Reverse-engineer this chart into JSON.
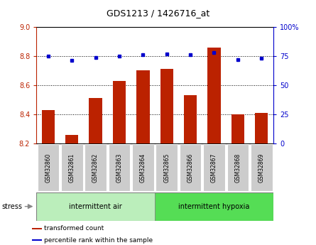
{
  "title": "GDS1213 / 1426716_at",
  "samples": [
    "GSM32860",
    "GSM32861",
    "GSM32862",
    "GSM32863",
    "GSM32864",
    "GSM32865",
    "GSM32866",
    "GSM32867",
    "GSM32868",
    "GSM32869"
  ],
  "red_values": [
    8.43,
    8.26,
    8.51,
    8.63,
    8.7,
    8.71,
    8.53,
    8.86,
    8.4,
    8.41
  ],
  "blue_values": [
    75,
    71,
    74,
    75,
    76,
    77,
    76,
    78,
    72,
    73
  ],
  "ylim_left": [
    8.2,
    9.0
  ],
  "ylim_right": [
    0,
    100
  ],
  "yticks_left": [
    8.2,
    8.4,
    8.6,
    8.8,
    9.0
  ],
  "yticks_right": [
    0,
    25,
    50,
    75,
    100
  ],
  "group1_label": "intermittent air",
  "group2_label": "intermittent hypoxia",
  "group1_count": 5,
  "group2_count": 5,
  "stress_label": "stress",
  "legend_red": "transformed count",
  "legend_blue": "percentile rank within the sample",
  "bar_color": "#bb2200",
  "dot_color": "#0000cc",
  "group1_color": "#bbeebb",
  "group2_color": "#55dd55",
  "tick_bg_color": "#cccccc",
  "right_axis_color": "#0000cc",
  "left_axis_color": "#bb2200"
}
